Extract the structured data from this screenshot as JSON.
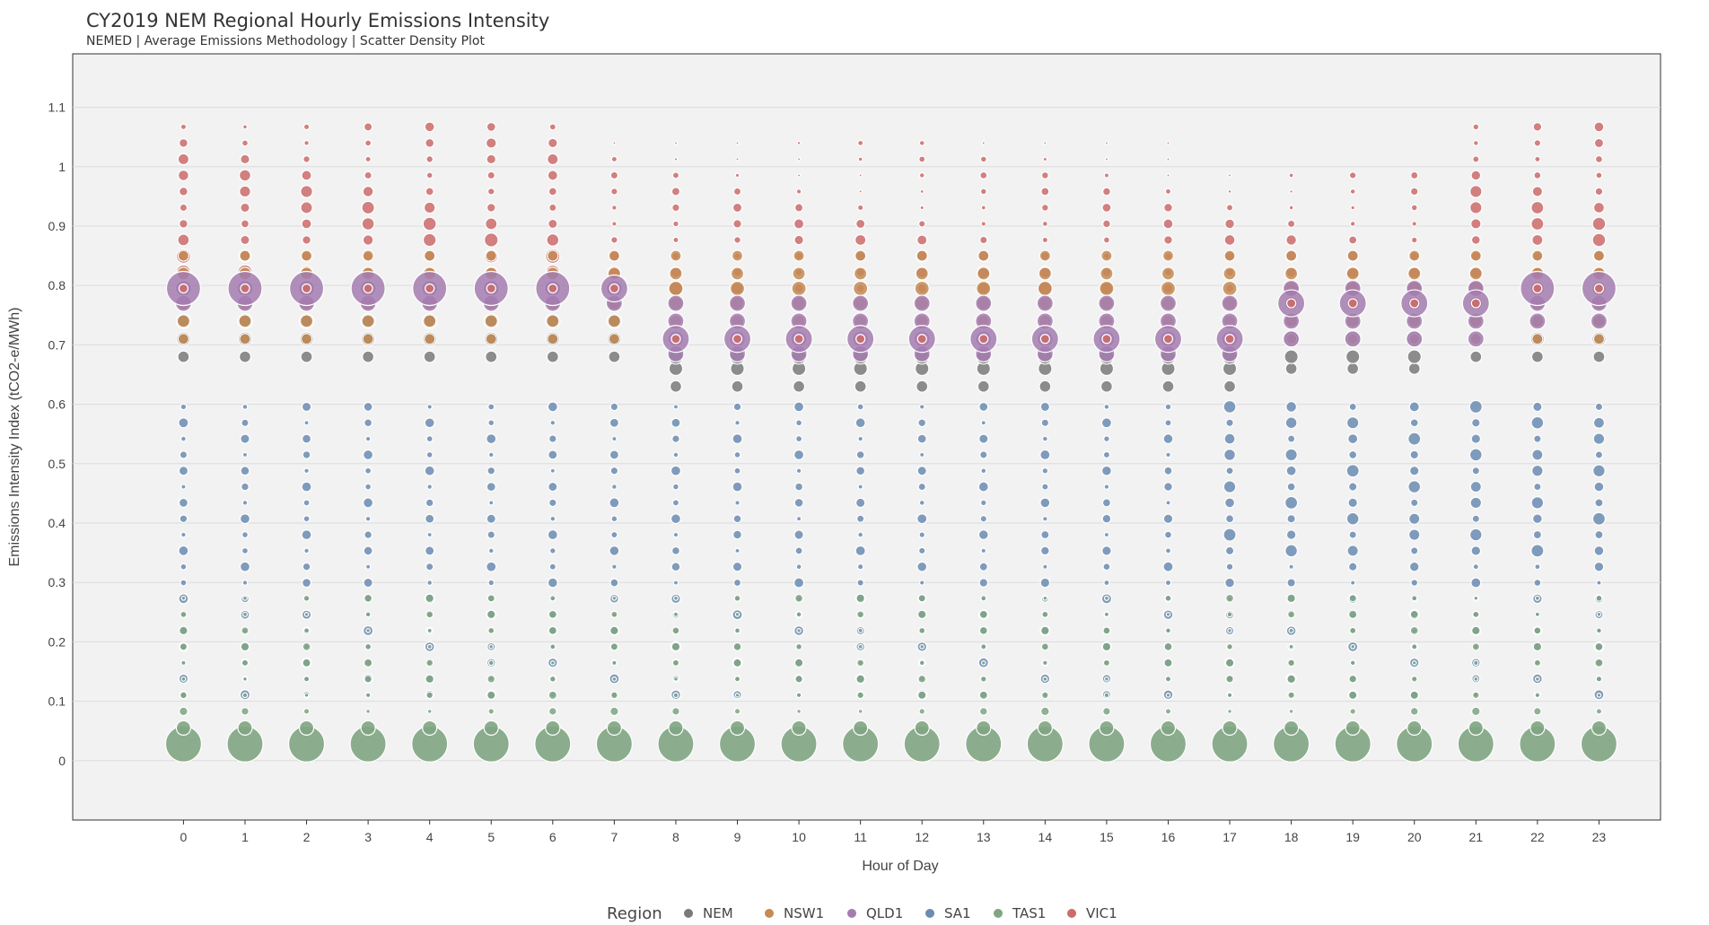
{
  "chart_data": {
    "type": "scatter",
    "title": "CY2019 NEM Regional Hourly Emissions Intensity",
    "subtitle": "NEMED | Average Emissions Methodology | Scatter Density Plot",
    "xlabel": "Hour of Day",
    "ylabel": "Emissions Intensity Index (tCO2-e/MWh)",
    "x_ticks": [
      "0",
      "1",
      "2",
      "3",
      "4",
      "5",
      "6",
      "7",
      "8",
      "9",
      "10",
      "11",
      "12",
      "13",
      "14",
      "15",
      "16",
      "17",
      "18",
      "19",
      "20",
      "21",
      "22",
      "23"
    ],
    "y_ticks": [
      "0",
      "0.1",
      "0.2",
      "0.3",
      "0.4",
      "0.5",
      "0.6",
      "0.7",
      "0.8",
      "0.9",
      "1",
      "1.1"
    ],
    "y_tick_values": [
      0,
      0.1,
      0.2,
      0.3,
      0.4,
      0.5,
      0.6,
      0.7,
      0.8,
      0.9,
      1,
      1.1
    ],
    "xlim": [
      -1.8,
      24.0
    ],
    "ylim": [
      -0.1,
      1.19
    ],
    "grid": true,
    "legend": {
      "title": "Region",
      "placement": "bottom-center",
      "entries": [
        "NEM",
        "NSW1",
        "QLD1",
        "SA1",
        "TAS1",
        "VIC1"
      ]
    },
    "colors": {
      "NEM": "#7a7a7a",
      "NSW1": "#c48b55",
      "QLD1": "#a57cb0",
      "SA1": "#6b8cb3",
      "TAS1": "#7fa582",
      "VIC1": "#cd6b6b"
    },
    "series": [
      {
        "name": "NEM",
        "points_note_free": true,
        "hours": [
          0,
          1,
          2,
          3,
          4,
          5,
          6,
          7,
          8,
          9,
          10,
          11,
          12,
          13,
          14,
          15,
          16,
          17,
          18,
          19,
          20,
          21,
          22,
          23
        ],
        "bins": [
          [
            0.68,
            0.71,
            0.74,
            0.77
          ],
          [
            0.68,
            0.71,
            0.74,
            0.77
          ],
          [
            0.68,
            0.71,
            0.74,
            0.77
          ],
          [
            0.68,
            0.71,
            0.74,
            0.77
          ],
          [
            0.68,
            0.71,
            0.74,
            0.77
          ],
          [
            0.68,
            0.71,
            0.74,
            0.77
          ],
          [
            0.68,
            0.71,
            0.74,
            0.77
          ],
          [
            0.68,
            0.71,
            0.74,
            0.77
          ],
          [
            0.63,
            0.66,
            0.68,
            0.71
          ],
          [
            0.63,
            0.66,
            0.68,
            0.71
          ],
          [
            0.63,
            0.66,
            0.68,
            0.71
          ],
          [
            0.63,
            0.66,
            0.68,
            0.71
          ],
          [
            0.63,
            0.66,
            0.68,
            0.71
          ],
          [
            0.63,
            0.66,
            0.68,
            0.71
          ],
          [
            0.63,
            0.66,
            0.68,
            0.71
          ],
          [
            0.63,
            0.66,
            0.68,
            0.71
          ],
          [
            0.63,
            0.66,
            0.68,
            0.71
          ],
          [
            0.63,
            0.66,
            0.68,
            0.71
          ],
          [
            0.66,
            0.68,
            0.71,
            0.74
          ],
          [
            0.66,
            0.68,
            0.71,
            0.74
          ],
          [
            0.66,
            0.68,
            0.71,
            0.74
          ],
          [
            0.68,
            0.71,
            0.74,
            0.77
          ],
          [
            0.68,
            0.71,
            0.74,
            0.77
          ],
          [
            0.68,
            0.71,
            0.74,
            0.77
          ]
        ],
        "density": [
          0.4,
          0.6,
          0.7,
          0.5
        ]
      },
      {
        "name": "NSW1",
        "bins_by_hour": "0.71-0.85",
        "y": [
          0.71,
          0.74,
          0.77,
          0.79,
          0.82,
          0.85
        ],
        "density": [
          0.4,
          0.6,
          0.7,
          0.8,
          0.6,
          0.4
        ]
      },
      {
        "name": "QLD1",
        "y_day": [
          0.74,
          0.77,
          0.79
        ],
        "y_mid": [
          0.68,
          0.71,
          0.74
        ],
        "density_peak": 1.0
      },
      {
        "name": "SA1",
        "y": [
          0.11,
          0.14,
          0.16,
          0.19,
          0.22,
          0.25,
          0.27,
          0.3,
          0.33,
          0.36,
          0.38,
          0.41,
          0.44,
          0.47,
          0.49,
          0.52,
          0.55,
          0.58,
          0.6
        ],
        "density": 0.4
      },
      {
        "name": "TAS1",
        "y": [
          0.03,
          0.05,
          0.08,
          0.11,
          0.14,
          0.16,
          0.19,
          0.22,
          0.25
        ],
        "density": [
          1.0,
          0.5,
          0.25,
          0.3,
          0.3,
          0.3,
          0.3,
          0.3,
          0.25
        ]
      },
      {
        "name": "VIC1",
        "y": [
          0.77,
          0.79,
          0.82,
          0.85,
          0.88,
          0.9,
          0.93,
          0.96,
          0.99,
          1.01,
          1.04,
          1.07,
          1.1
        ],
        "density": 0.5
      }
    ]
  }
}
